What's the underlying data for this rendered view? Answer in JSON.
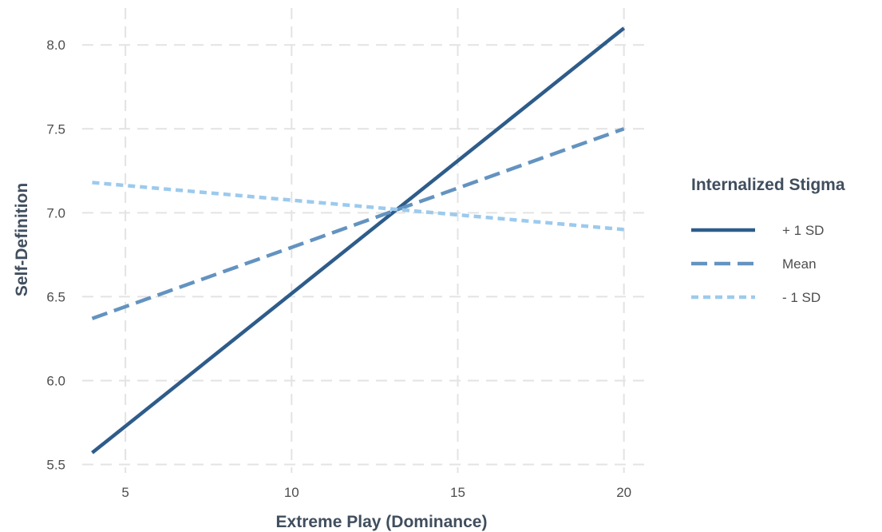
{
  "chart_data": {
    "type": "line",
    "title": "",
    "xlabel": "Extreme Play (Dominance)",
    "ylabel": "Self-Definition",
    "xlim": [
      3.7,
      20.8
    ],
    "ylim": [
      5.45,
      8.22
    ],
    "xticks": [
      5,
      10,
      15,
      20
    ],
    "yticks": [
      5.5,
      6.0,
      6.5,
      7.0,
      7.5,
      8.0
    ],
    "xtick_labels": [
      "5",
      "10",
      "15",
      "20"
    ],
    "ytick_labels": [
      "5.5",
      "6.0",
      "6.5",
      "7.0",
      "7.5",
      "8.0"
    ],
    "grid": true,
    "legend": {
      "title": "Internalized Stigma",
      "position": "right"
    },
    "series": [
      {
        "name": "+ 1 SD",
        "x": [
          4,
          20
        ],
        "y": [
          5.57,
          8.1
        ],
        "color": "#2e5c8a",
        "style": "solid"
      },
      {
        "name": "Mean",
        "x": [
          4,
          20
        ],
        "y": [
          6.37,
          7.5
        ],
        "color": "#6393c0",
        "style": "dashed"
      },
      {
        "name": "- 1 SD",
        "x": [
          4,
          20
        ],
        "y": [
          7.18,
          6.9
        ],
        "color": "#9ccaed",
        "style": "dotted"
      }
    ]
  }
}
